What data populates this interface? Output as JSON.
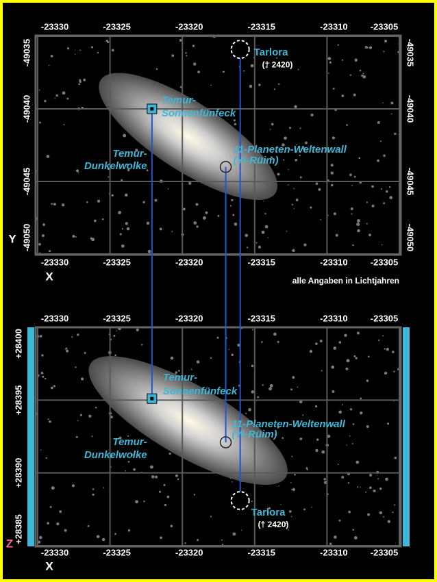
{
  "chart_data": [
    {
      "type": "map",
      "x_label": "X",
      "y_label": "Y",
      "xlim": [
        -23330,
        -23305
      ],
      "ylim": [
        -49050,
        -49035
      ],
      "xticks": [
        -23330,
        -23325,
        -23320,
        -23315,
        -23310,
        -23305
      ],
      "yticks": [
        -49035,
        -49040,
        -49045,
        -49050
      ],
      "objects": [
        {
          "label": [
            "Tarlora",
            "(† 2420)"
          ],
          "marker": "dashed-circle",
          "x": -23316,
          "y": -49035.9
        },
        {
          "label": [
            "Temur-",
            "Sonnenfünfeck"
          ],
          "marker": "square",
          "x": -23322.1,
          "y": -49040
        },
        {
          "label": [
            "11-Planeten-Weltenwall",
            "(Yi-Rüim)"
          ],
          "marker": "circle",
          "x": -23317,
          "y": -49044
        },
        {
          "label": [
            "Temur-",
            "Dunkelwolke"
          ],
          "marker": "cloud",
          "x": -23319.6,
          "y": -49041.9
        }
      ]
    },
    {
      "type": "map",
      "x_label": "X",
      "y_label": "Z",
      "xlim": [
        -23330,
        -23305
      ],
      "ylim": [
        28385,
        28400
      ],
      "xticks": [
        -23330,
        -23325,
        -23320,
        -23315,
        -23310,
        -23305
      ],
      "yticks": [
        {
          "value": 28400,
          "label": "+28400"
        },
        {
          "value": 28395,
          "label": "+28395"
        },
        {
          "value": 28390,
          "label": "+28390"
        },
        {
          "value": 28385,
          "label": "+28385"
        }
      ],
      "objects": [
        {
          "label": [
            "Tarlora",
            "(† 2420)"
          ],
          "marker": "dashed-circle",
          "x": -23316,
          "y": 28388.1
        },
        {
          "label": [
            "Temur-",
            "Sonnenfünfeck"
          ],
          "marker": "square",
          "x": -23322.1,
          "y": 28395.1
        },
        {
          "label": [
            "11-Planeten-Weltenwall",
            "(Yi-Rüim)"
          ],
          "marker": "circle",
          "x": -23317,
          "y": 28392.1
        },
        {
          "label": [
            "Temur-",
            "Dunkelwolke"
          ],
          "marker": "cloud",
          "x": -23319.6,
          "y": 28393.6
        }
      ]
    }
  ],
  "footnote": "alle Angaben in Lichtjahren"
}
